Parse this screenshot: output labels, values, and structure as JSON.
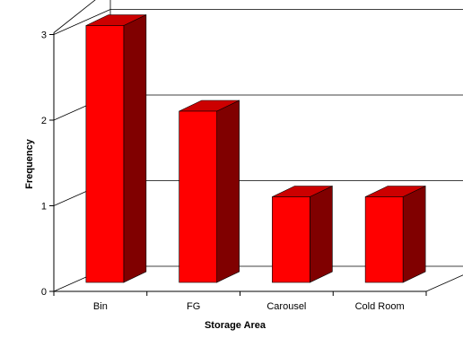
{
  "chart_data": {
    "type": "bar",
    "style": "3d-column",
    "title": "",
    "xlabel": "Storage Area",
    "ylabel": "Frequency",
    "categories": [
      "Bin",
      "FG",
      "Carousel",
      "Cold Room"
    ],
    "values": [
      3,
      2,
      1,
      1
    ],
    "ylim": [
      0,
      3
    ],
    "yticks": [
      "0",
      "1",
      "2",
      "3"
    ],
    "grid": true,
    "legend": "none",
    "colors": {
      "bar_front": "#ff0000",
      "bar_top": "#cc0000",
      "bar_side": "#800000",
      "grid": "#000000",
      "axis": "#000000"
    }
  }
}
